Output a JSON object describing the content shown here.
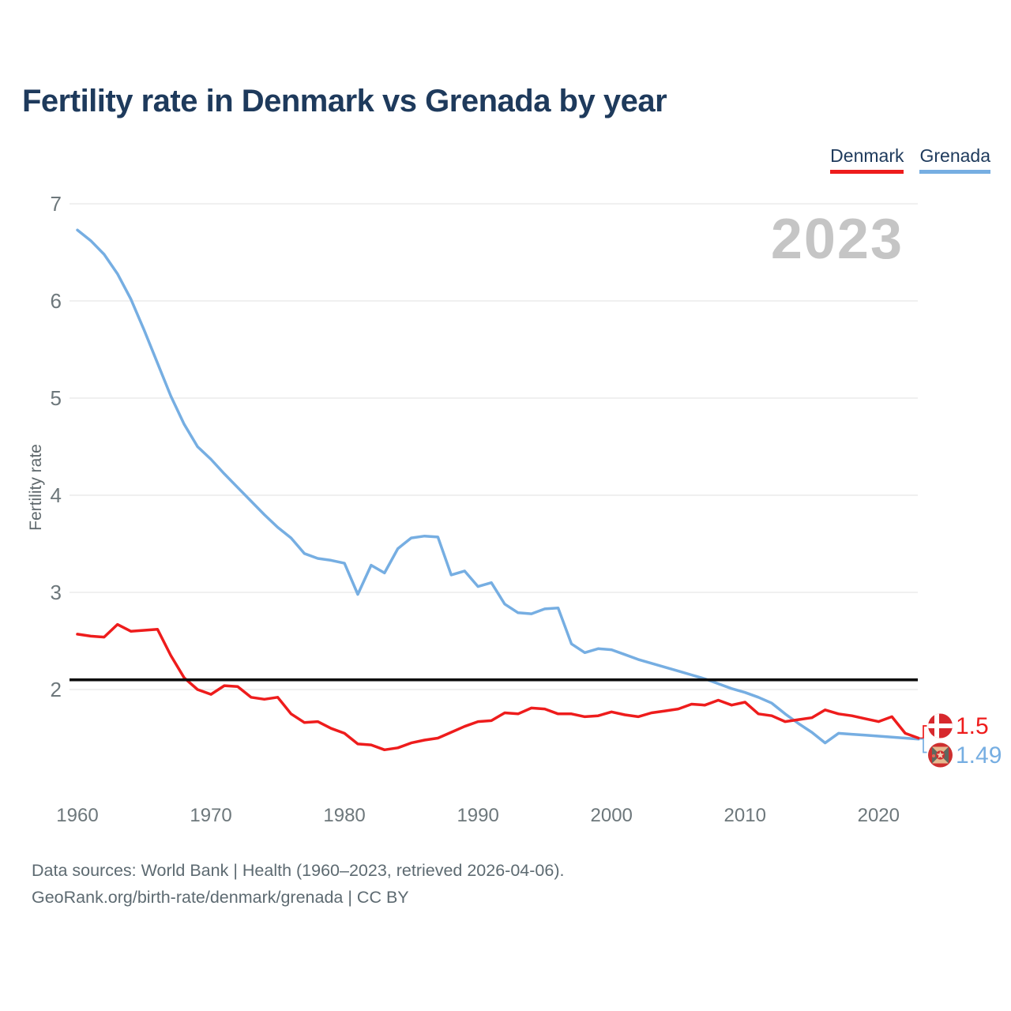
{
  "page": {
    "title": "Fertility rate in Denmark vs Grenada by year",
    "watermark": "2023",
    "footer_line1": "Data sources: World Bank | Health (1960–2023, retrieved 2026-04-06).",
    "footer_line2": "GeoRank.org/birth-rate/denmark/grenada | CC BY"
  },
  "legend": [
    {
      "label": "Denmark",
      "color": "#ee1c1c"
    },
    {
      "label": "Grenada",
      "color": "#76aee2"
    }
  ],
  "chart_data": {
    "type": "line",
    "title": "Fertility rate in Denmark vs Grenada by year",
    "xlabel": "",
    "ylabel": "Fertility rate",
    "x_ticks": [
      1960,
      1970,
      1980,
      1990,
      2000,
      2010,
      2020
    ],
    "y_ticks": [
      2,
      3,
      4,
      5,
      6,
      7
    ],
    "ylim": [
      1.3,
      7.05
    ],
    "xlim": [
      1960,
      2023
    ],
    "grid": "horizontal-only",
    "legend_position": "top-right",
    "reference_line": {
      "value": 2.1,
      "color": "#0b0b0b",
      "meaning": "replacement-level fertility"
    },
    "colors": {
      "grid": "#e8e8e8",
      "tick_text": "#6d777b"
    },
    "x": [
      1960,
      1961,
      1962,
      1963,
      1964,
      1965,
      1966,
      1967,
      1968,
      1969,
      1970,
      1971,
      1972,
      1973,
      1974,
      1975,
      1976,
      1977,
      1978,
      1979,
      1980,
      1981,
      1982,
      1983,
      1984,
      1985,
      1986,
      1987,
      1988,
      1989,
      1990,
      1991,
      1992,
      1993,
      1994,
      1995,
      1996,
      1997,
      1998,
      1999,
      2000,
      2001,
      2002,
      2003,
      2004,
      2005,
      2006,
      2007,
      2008,
      2009,
      2010,
      2011,
      2012,
      2013,
      2014,
      2015,
      2016,
      2017,
      2018,
      2019,
      2020,
      2021,
      2022,
      2023
    ],
    "series": [
      {
        "name": "Denmark",
        "color": "#ee1c1c",
        "flag": "denmark",
        "end_label": "1.5",
        "values": [
          2.57,
          2.55,
          2.54,
          2.67,
          2.6,
          2.61,
          2.62,
          2.35,
          2.12,
          2.0,
          1.95,
          2.04,
          2.03,
          1.92,
          1.9,
          1.92,
          1.75,
          1.66,
          1.67,
          1.6,
          1.55,
          1.44,
          1.43,
          1.38,
          1.4,
          1.45,
          1.48,
          1.5,
          1.56,
          1.62,
          1.67,
          1.68,
          1.76,
          1.75,
          1.81,
          1.8,
          1.75,
          1.75,
          1.72,
          1.73,
          1.77,
          1.74,
          1.72,
          1.76,
          1.78,
          1.8,
          1.85,
          1.84,
          1.89,
          1.84,
          1.87,
          1.75,
          1.73,
          1.67,
          1.69,
          1.71,
          1.79,
          1.75,
          1.73,
          1.7,
          1.67,
          1.72,
          1.55,
          1.5
        ]
      },
      {
        "name": "Grenada",
        "color": "#76aee2",
        "flag": "grenada",
        "end_label": "1.49",
        "values": [
          6.73,
          6.62,
          6.48,
          6.28,
          6.02,
          5.7,
          5.36,
          5.02,
          4.73,
          4.5,
          4.37,
          4.22,
          4.08,
          3.94,
          3.8,
          3.67,
          3.56,
          3.4,
          3.35,
          3.33,
          3.3,
          2.98,
          3.28,
          3.2,
          3.45,
          3.56,
          3.58,
          3.57,
          3.18,
          3.22,
          3.06,
          3.1,
          2.88,
          2.79,
          2.78,
          2.83,
          2.84,
          2.47,
          2.38,
          2.42,
          2.41,
          2.36,
          2.31,
          2.27,
          2.23,
          2.19,
          2.15,
          2.11,
          2.06,
          2.01,
          1.97,
          1.92,
          1.86,
          1.75,
          1.65,
          1.56,
          1.45,
          1.55,
          1.54,
          1.53,
          1.52,
          1.51,
          1.5,
          1.49
        ]
      }
    ]
  }
}
